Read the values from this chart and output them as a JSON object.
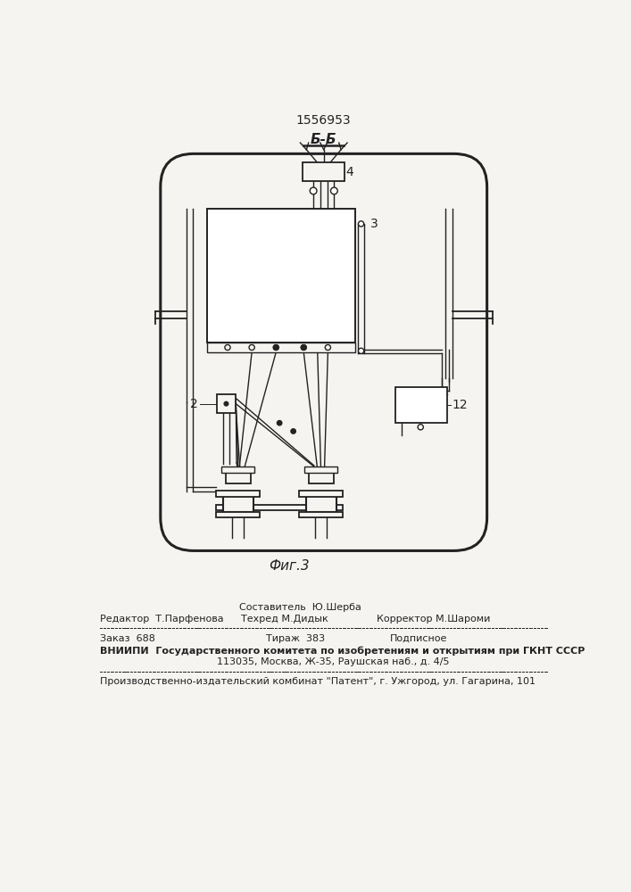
{
  "title": "1556953",
  "section_label": "Б-Б",
  "fig_label": "Фиг.3",
  "label_2": "2",
  "label_3": "3",
  "label_4": "4",
  "label_12": "12",
  "footer_line1": "Составитель  Ю.Шерба",
  "footer_line2_col1": "Редактор  Т.Парфенова",
  "footer_line2_col2": "Техред М.Дидык",
  "footer_line2_col3": "Корректор М.Шароми",
  "footer_line3_col1": "Заказ  688",
  "footer_line3_col2": "Тираж  383",
  "footer_line3_col3": "Подписное",
  "footer_line4": "ВНИИПИ  Государственного комитета по изобретениям и открытиям при ГКНТ СССР",
  "footer_line5": "113035, Москва, Ж-35, Раушская наб., д. 4/5",
  "footer_line6": "Производственно-издательский комбинат \"Патент\", г. Ужгород, ул. Гагарина, 101",
  "bg_color": "#f5f4f1",
  "line_color": "#222222",
  "line_width": 1.0
}
